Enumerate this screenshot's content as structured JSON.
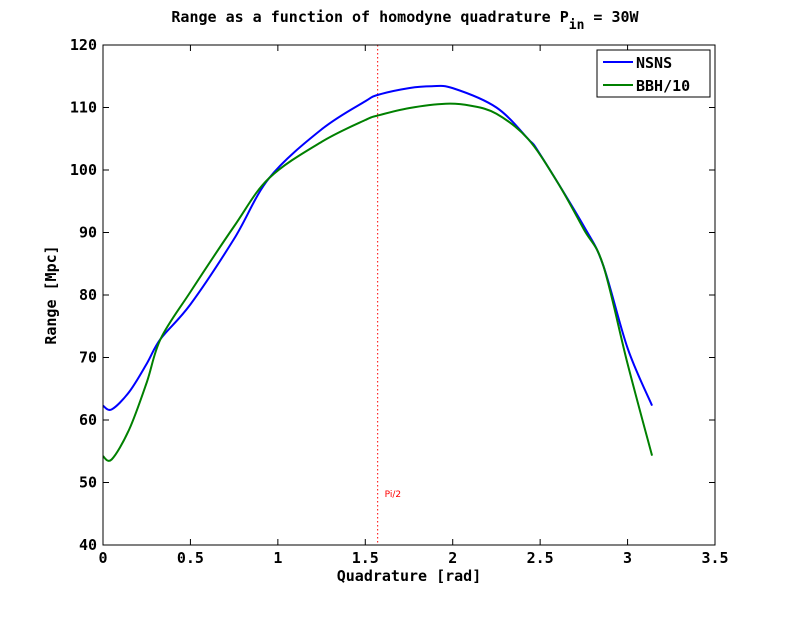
{
  "chart_data": {
    "type": "line",
    "title": "Range as a function of homodyne quadrature P",
    "title_subscript": "in",
    "title_suffix": " = 30W",
    "xlabel": "Quadrature [rad]",
    "ylabel": "Range [Mpc]",
    "xlim": [
      0,
      3.5
    ],
    "ylim": [
      40,
      120
    ],
    "xticks": [
      "0",
      "0.5",
      "1",
      "1.5",
      "2",
      "2.5",
      "3",
      "3.5"
    ],
    "yticks": [
      "40",
      "50",
      "60",
      "70",
      "80",
      "90",
      "100",
      "110",
      "120"
    ],
    "grid": false,
    "legend_placement": "top-right",
    "annotation": {
      "x": 1.5708,
      "label": "Pi/2",
      "color": "#ff0000"
    },
    "series": [
      {
        "name": "NSNS",
        "color": "#0000ff",
        "x": [
          0,
          0.05,
          0.15,
          0.25,
          0.33,
          0.5,
          0.75,
          0.95,
          1.25,
          1.5,
          1.57,
          1.75,
          1.88,
          2.0,
          2.25,
          2.43,
          2.5,
          2.75,
          2.86,
          3.0,
          3.14
        ],
        "y": [
          62.3,
          61.7,
          64.5,
          69,
          73,
          78.5,
          89,
          98.7,
          106.5,
          111,
          112,
          113.1,
          113.4,
          113.1,
          110,
          105,
          102.5,
          91,
          84.8,
          71.5,
          62.3
        ]
      },
      {
        "name": "BBH/10",
        "color": "#008000",
        "x": [
          0,
          0.05,
          0.15,
          0.25,
          0.33,
          0.5,
          0.75,
          0.95,
          1.25,
          1.5,
          1.57,
          1.75,
          1.96,
          2.1,
          2.25,
          2.43,
          2.6,
          2.75,
          2.86,
          3.0,
          3.14
        ],
        "y": [
          54.2,
          53.7,
          58.5,
          66,
          73,
          80.5,
          91,
          98.7,
          104.5,
          108,
          108.7,
          109.9,
          110.6,
          110.3,
          109,
          105,
          98,
          90.5,
          84.8,
          69,
          54.3
        ]
      }
    ]
  }
}
